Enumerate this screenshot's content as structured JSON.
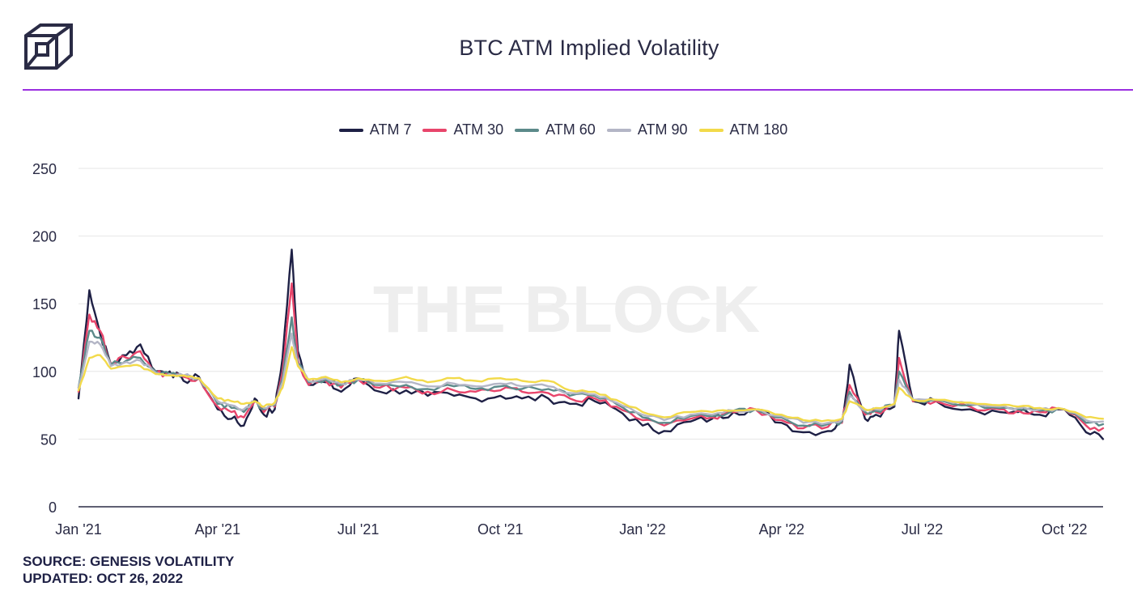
{
  "title": "BTC ATM Implied Volatility",
  "watermark": "THE BLOCK",
  "source": "SOURCE: GENESIS VOLATILITY",
  "updated": "UPDATED: OCT 26, 2022",
  "colors": {
    "rule": "#9b2fe0",
    "logo": "#2a2b45",
    "grid": "#e6e6e6",
    "axis": "#2a2b45"
  },
  "chart_data": {
    "type": "line",
    "title": "BTC ATM Implied Volatility",
    "xlabel": "",
    "ylabel": "",
    "ylim": [
      0,
      250
    ],
    "yticks": [
      "0",
      "50",
      "100",
      "150",
      "200",
      "250"
    ],
    "xticks": [
      "Jan '21",
      "Apr '21",
      "Jul '21",
      "Oct '21",
      "Jan '22",
      "Apr '22",
      "Jul '22",
      "Oct '22"
    ],
    "xrange": [
      "2021-01-01",
      "2022-10-26"
    ],
    "grid": true,
    "legend_position": "top-center",
    "x": [
      "2021-01-01",
      "2021-01-08",
      "2021-01-15",
      "2021-01-22",
      "2021-02-01",
      "2021-02-10",
      "2021-02-20",
      "2021-03-01",
      "2021-03-10",
      "2021-03-20",
      "2021-04-01",
      "2021-04-10",
      "2021-04-18",
      "2021-04-25",
      "2021-05-01",
      "2021-05-08",
      "2021-05-13",
      "2021-05-19",
      "2021-05-23",
      "2021-05-30",
      "2021-06-10",
      "2021-06-20",
      "2021-07-01",
      "2021-07-15",
      "2021-08-01",
      "2021-08-15",
      "2021-09-01",
      "2021-09-15",
      "2021-10-01",
      "2021-10-15",
      "2021-11-01",
      "2021-11-15",
      "2021-12-01",
      "2021-12-15",
      "2022-01-01",
      "2022-01-15",
      "2022-02-01",
      "2022-02-15",
      "2022-03-01",
      "2022-03-15",
      "2022-04-01",
      "2022-04-15",
      "2022-05-01",
      "2022-05-10",
      "2022-05-15",
      "2022-05-25",
      "2022-06-01",
      "2022-06-13",
      "2022-06-16",
      "2022-06-25",
      "2022-07-10",
      "2022-08-01",
      "2022-08-20",
      "2022-09-01",
      "2022-09-15",
      "2022-10-01",
      "2022-10-15",
      "2022-10-26"
    ],
    "series": [
      {
        "name": "ATM 7",
        "color": "#1e2045",
        "values": [
          80,
          160,
          128,
          105,
          112,
          120,
          100,
          100,
          93,
          96,
          72,
          65,
          60,
          80,
          68,
          72,
          110,
          190,
          115,
          90,
          92,
          85,
          95,
          85,
          86,
          82,
          82,
          80,
          82,
          80,
          80,
          76,
          78,
          72,
          60,
          56,
          63,
          65,
          70,
          72,
          62,
          55,
          56,
          62,
          105,
          65,
          68,
          74,
          130,
          78,
          78,
          72,
          70,
          70,
          68,
          72,
          55,
          50
        ]
      },
      {
        "name": "ATM 30",
        "color": "#e8456b",
        "values": [
          85,
          142,
          130,
          106,
          110,
          115,
          99,
          98,
          96,
          95,
          74,
          70,
          66,
          78,
          70,
          74,
          100,
          165,
          108,
          90,
          93,
          88,
          94,
          88,
          88,
          85,
          86,
          85,
          86,
          85,
          84,
          80,
          80,
          74,
          64,
          60,
          65,
          66,
          70,
          72,
          64,
          58,
          59,
          62,
          90,
          68,
          70,
          75,
          110,
          78,
          78,
          74,
          72,
          71,
          70,
          72,
          60,
          58
        ]
      },
      {
        "name": "ATM 60",
        "color": "#5c8a8a",
        "values": [
          88,
          130,
          125,
          105,
          108,
          110,
          100,
          98,
          97,
          95,
          76,
          73,
          70,
          78,
          72,
          75,
          95,
          140,
          106,
          92,
          94,
          90,
          94,
          90,
          90,
          87,
          89,
          87,
          89,
          87,
          87,
          82,
          82,
          76,
          66,
          62,
          67,
          67,
          71,
          72,
          66,
          60,
          61,
          63,
          85,
          70,
          71,
          75,
          100,
          79,
          79,
          75,
          73,
          72,
          71,
          72,
          62,
          61
        ]
      },
      {
        "name": "ATM 90",
        "color": "#b4b6c6",
        "values": [
          88,
          122,
          120,
          104,
          107,
          108,
          99,
          98,
          97,
          95,
          78,
          75,
          72,
          78,
          73,
          76,
          92,
          128,
          105,
          93,
          95,
          91,
          94,
          91,
          92,
          89,
          91,
          89,
          91,
          89,
          89,
          84,
          83,
          77,
          68,
          64,
          68,
          68,
          71,
          72,
          67,
          62,
          62,
          64,
          82,
          71,
          72,
          76,
          94,
          79,
          79,
          76,
          74,
          73,
          72,
          72,
          64,
          63
        ]
      },
      {
        "name": "ATM 180",
        "color": "#f2da4a",
        "values": [
          86,
          110,
          112,
          102,
          104,
          104,
          98,
          97,
          97,
          95,
          80,
          78,
          76,
          78,
          74,
          77,
          88,
          118,
          104,
          94,
          96,
          92,
          95,
          93,
          96,
          92,
          95,
          93,
          95,
          93,
          93,
          86,
          85,
          79,
          70,
          66,
          70,
          70,
          71,
          72,
          68,
          64,
          64,
          65,
          78,
          72,
          73,
          76,
          88,
          79,
          79,
          77,
          75,
          74,
          73,
          72,
          66,
          65
        ]
      }
    ]
  }
}
